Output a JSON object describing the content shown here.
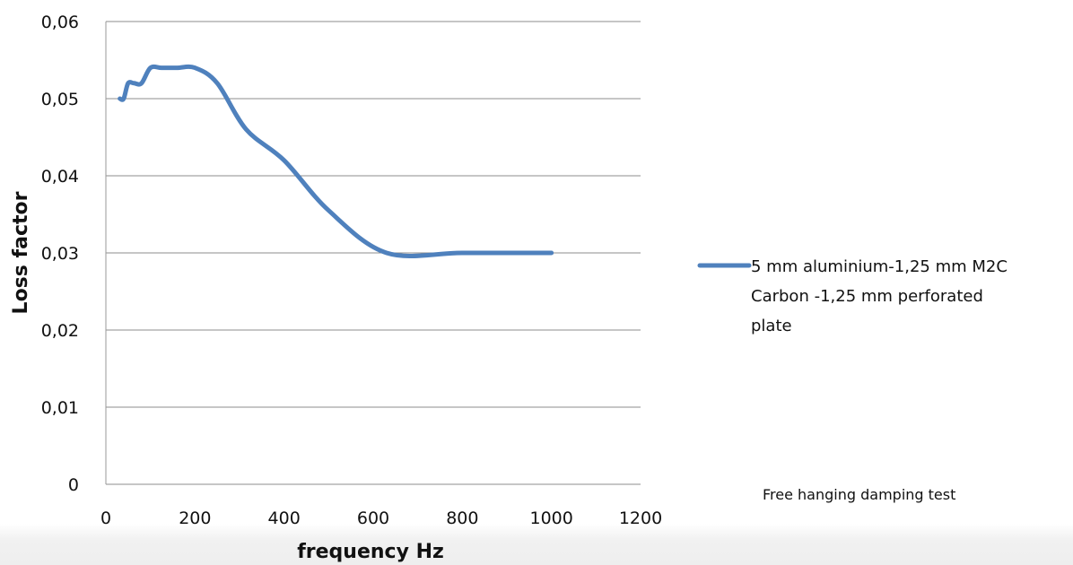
{
  "chart_data": {
    "type": "line",
    "title": "",
    "xlabel": "frequency Hz",
    "ylabel": "Loss factor",
    "xlim": [
      0,
      1200
    ],
    "ylim": [
      0,
      0.06
    ],
    "x_ticks": [
      {
        "value": 0,
        "label": "0"
      },
      {
        "value": 200,
        "label": "200"
      },
      {
        "value": 400,
        "label": "400"
      },
      {
        "value": 600,
        "label": "600"
      },
      {
        "value": 800,
        "label": "800"
      },
      {
        "value": 1000,
        "label": "1000"
      },
      {
        "value": 1200,
        "label": "1200"
      }
    ],
    "y_ticks": [
      {
        "value": 0,
        "label": "0"
      },
      {
        "value": 0.01,
        "label": "0,01"
      },
      {
        "value": 0.02,
        "label": "0,02"
      },
      {
        "value": 0.03,
        "label": "0,03"
      },
      {
        "value": 0.04,
        "label": "0,04"
      },
      {
        "value": 0.05,
        "label": "0,05"
      },
      {
        "value": 0.06,
        "label": "0,06"
      }
    ],
    "grid": "horizontal",
    "legend_position": "right",
    "series": [
      {
        "name": "5 mm aluminium-1,25 mm M2C Carbon -1,25 mm perforated plate",
        "legend_lines": [
          "5 mm aluminium-1,25 mm M2C",
          "Carbon -1,25 mm perforated",
          "plate"
        ],
        "color": "#4f81bd",
        "x": [
          31.5,
          40,
          50,
          63,
          80,
          100,
          125,
          160,
          200,
          250,
          315,
          400,
          500,
          630,
          800,
          1000
        ],
        "y": [
          0.05,
          0.05,
          0.052,
          0.052,
          0.052,
          0.054,
          0.054,
          0.054,
          0.054,
          0.052,
          0.046,
          0.042,
          0.0355,
          0.03,
          0.03,
          0.03
        ]
      }
    ],
    "annotation": "Free hanging damping test"
  }
}
